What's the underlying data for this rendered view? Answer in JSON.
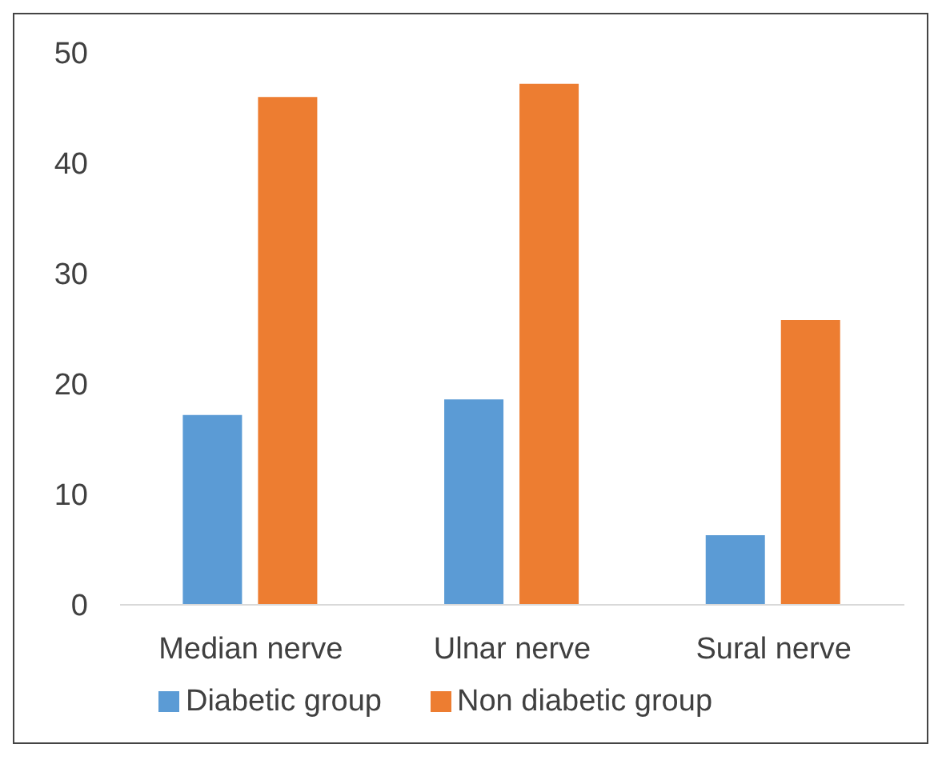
{
  "chart_data": {
    "type": "bar",
    "categories": [
      "Median nerve",
      "Ulnar nerve",
      "Sural nerve"
    ],
    "series": [
      {
        "name": "Diabetic group",
        "color": "#5b9bd5",
        "values": [
          17.2,
          18.6,
          6.3
        ]
      },
      {
        "name": "Non diabetic group",
        "color": "#ed7d31",
        "values": [
          46.0,
          47.2,
          25.8
        ]
      }
    ],
    "ylim": [
      0,
      50
    ],
    "yticks": [
      0,
      10,
      20,
      30,
      40,
      50
    ],
    "grid": false,
    "legend": "bottom"
  }
}
